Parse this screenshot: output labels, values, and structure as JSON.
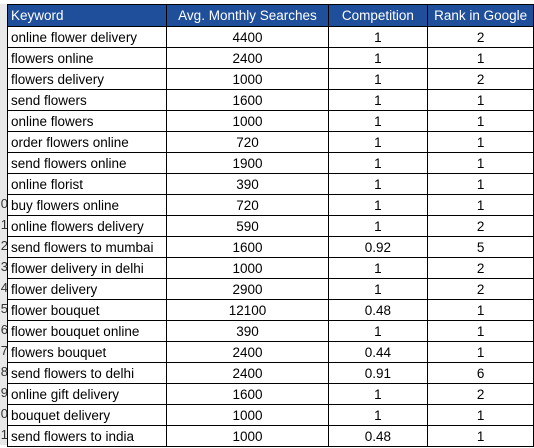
{
  "row_numbers": [
    "",
    "",
    "",
    "",
    "",
    "",
    "",
    "",
    "",
    "0",
    "1",
    "2",
    "3",
    "4",
    "5",
    "6",
    "7",
    "8",
    "9",
    "0",
    "1"
  ],
  "table": {
    "headers": {
      "keyword": "Keyword",
      "searches": "Avg. Monthly Searches",
      "competition": "Competition",
      "rank": "Rank in Google"
    },
    "header_color": "#1f4e9a",
    "rows": [
      {
        "keyword": "online flower delivery",
        "searches": "4400",
        "competition": "1",
        "rank": "2"
      },
      {
        "keyword": "flowers online",
        "searches": "2400",
        "competition": "1",
        "rank": "1"
      },
      {
        "keyword": "flowers delivery",
        "searches": "1000",
        "competition": "1",
        "rank": "2"
      },
      {
        "keyword": "send flowers",
        "searches": "1600",
        "competition": "1",
        "rank": "1"
      },
      {
        "keyword": "online flowers",
        "searches": "1000",
        "competition": "1",
        "rank": "1"
      },
      {
        "keyword": "order flowers online",
        "searches": "720",
        "competition": "1",
        "rank": "1"
      },
      {
        "keyword": "send flowers online",
        "searches": "1900",
        "competition": "1",
        "rank": "1"
      },
      {
        "keyword": "online florist",
        "searches": "390",
        "competition": "1",
        "rank": "1"
      },
      {
        "keyword": "buy flowers online",
        "searches": "720",
        "competition": "1",
        "rank": "1"
      },
      {
        "keyword": "online flowers delivery",
        "searches": "590",
        "competition": "1",
        "rank": "2"
      },
      {
        "keyword": "send flowers to mumbai",
        "searches": "1600",
        "competition": "0.92",
        "rank": "5"
      },
      {
        "keyword": "flower delivery in delhi",
        "searches": "1000",
        "competition": "1",
        "rank": "2"
      },
      {
        "keyword": "flower delivery",
        "searches": "2900",
        "competition": "1",
        "rank": "2"
      },
      {
        "keyword": "flower bouquet",
        "searches": "12100",
        "competition": "0.48",
        "rank": "1"
      },
      {
        "keyword": "flower bouquet online",
        "searches": "390",
        "competition": "1",
        "rank": "1"
      },
      {
        "keyword": "flowers bouquet",
        "searches": "2400",
        "competition": "0.44",
        "rank": "1"
      },
      {
        "keyword": "send flowers to delhi",
        "searches": "2400",
        "competition": "0.91",
        "rank": "6"
      },
      {
        "keyword": "online gift delivery",
        "searches": "1600",
        "competition": "1",
        "rank": "2"
      },
      {
        "keyword": "bouquet delivery",
        "searches": "1000",
        "competition": "1",
        "rank": "1"
      },
      {
        "keyword": "send flowers to india",
        "searches": "1000",
        "competition": "0.48",
        "rank": "1"
      }
    ]
  }
}
